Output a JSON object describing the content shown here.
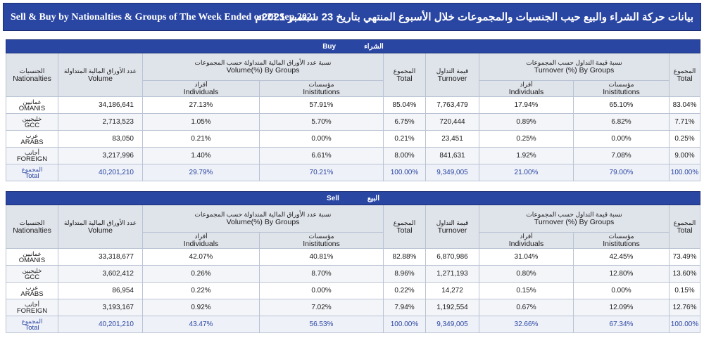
{
  "title": {
    "en": "Sell & Buy by Nationalties & Groups of The Week Ended on 23 Sep 2021",
    "ar": "بيانات حركة الشراء والبيع حيب الجنسيات والمجموعات خلال الأسبوع المنتهي  بتاريخ 23 سبتمبر  2021م"
  },
  "headers": {
    "nationalities_ar": "الجنسيات",
    "nationalities_en": "Nationalties",
    "volume_ar": "عدد الأوراق المالية المتداولة",
    "volume_en": "Volume",
    "volume_groups_ar": "نسبة عدد الأوراق المالية المتداولة حسب المجموعات",
    "volume_groups_en": "Volume(%) By Groups",
    "individuals_ar": "أفراد",
    "individuals_en": "Individuals",
    "institutions_ar": "مؤسسات",
    "institutions_en": "Inistitutions",
    "total_ar": "المجموع",
    "total_en": "Total",
    "turnover_ar": "قيمة التداول",
    "turnover_en": "Turnover",
    "turnover_groups_ar": "نسبة قيمة التداول حسب المجموعات",
    "turnover_groups_en": "Turnover (%) By Groups"
  },
  "buy": {
    "label_en": "Buy",
    "label_ar": "الشراء",
    "rows": [
      {
        "ar": "عمانيين",
        "en": "OMANIS",
        "volume": "34,186,641",
        "vol_ind": "27.13%",
        "vol_inst": "57.91%",
        "vol_total": "85.04%",
        "turnover": "7,763,479",
        "to_ind": "17.94%",
        "to_inst": "65.10%",
        "to_total": "83.04%"
      },
      {
        "ar": "خليجيين",
        "en": "GCC",
        "volume": "2,713,523",
        "vol_ind": "1.05%",
        "vol_inst": "5.70%",
        "vol_total": "6.75%",
        "turnover": "720,444",
        "to_ind": "0.89%",
        "to_inst": "6.82%",
        "to_total": "7.71%"
      },
      {
        "ar": "عرب",
        "en": "ARABS",
        "volume": "83,050",
        "vol_ind": "0.21%",
        "vol_inst": "0.00%",
        "vol_total": "0.21%",
        "turnover": "23,451",
        "to_ind": "0.25%",
        "to_inst": "0.00%",
        "to_total": "0.25%"
      },
      {
        "ar": "أجانب",
        "en": "FOREIGN",
        "volume": "3,217,996",
        "vol_ind": "1.40%",
        "vol_inst": "6.61%",
        "vol_total": "8.00%",
        "turnover": "841,631",
        "to_ind": "1.92%",
        "to_inst": "7.08%",
        "to_total": "9.00%"
      },
      {
        "ar": "المجموع",
        "en": "Total",
        "volume": "40,201,210",
        "vol_ind": "29.79%",
        "vol_inst": "70.21%",
        "vol_total": "100.00%",
        "turnover": "9,349,005",
        "to_ind": "21.00%",
        "to_inst": "79.00%",
        "to_total": "100.00%"
      }
    ]
  },
  "sell": {
    "label_en": "Sell",
    "label_ar": "البيع",
    "rows": [
      {
        "ar": "عمانيين",
        "en": "OMANIS",
        "volume": "33,318,677",
        "vol_ind": "42.07%",
        "vol_inst": "40.81%",
        "vol_total": "82.88%",
        "turnover": "6,870,986",
        "to_ind": "31.04%",
        "to_inst": "42.45%",
        "to_total": "73.49%"
      },
      {
        "ar": "خليجيين",
        "en": "GCC",
        "volume": "3,602,412",
        "vol_ind": "0.26%",
        "vol_inst": "8.70%",
        "vol_total": "8.96%",
        "turnover": "1,271,193",
        "to_ind": "0.80%",
        "to_inst": "12.80%",
        "to_total": "13.60%"
      },
      {
        "ar": "عرب",
        "en": "ARABS",
        "volume": "86,954",
        "vol_ind": "0.22%",
        "vol_inst": "0.00%",
        "vol_total": "0.22%",
        "turnover": "14,272",
        "to_ind": "0.15%",
        "to_inst": "0.00%",
        "to_total": "0.15%"
      },
      {
        "ar": "أجانب",
        "en": "FOREIGN",
        "volume": "3,193,167",
        "vol_ind": "0.92%",
        "vol_inst": "7.02%",
        "vol_total": "7.94%",
        "turnover": "1,192,554",
        "to_ind": "0.67%",
        "to_inst": "12.09%",
        "to_total": "12.76%"
      },
      {
        "ar": "المجموع",
        "en": "Total",
        "volume": "40,201,210",
        "vol_ind": "43.47%",
        "vol_inst": "56.53%",
        "vol_total": "100.00%",
        "turnover": "9,349,005",
        "to_ind": "32.66%",
        "to_inst": "67.34%",
        "to_total": "100.00%"
      }
    ]
  },
  "colors": {
    "band": "#2a46a3",
    "header_bg": "#dfe3ea",
    "total_text": "#2a46a3"
  }
}
